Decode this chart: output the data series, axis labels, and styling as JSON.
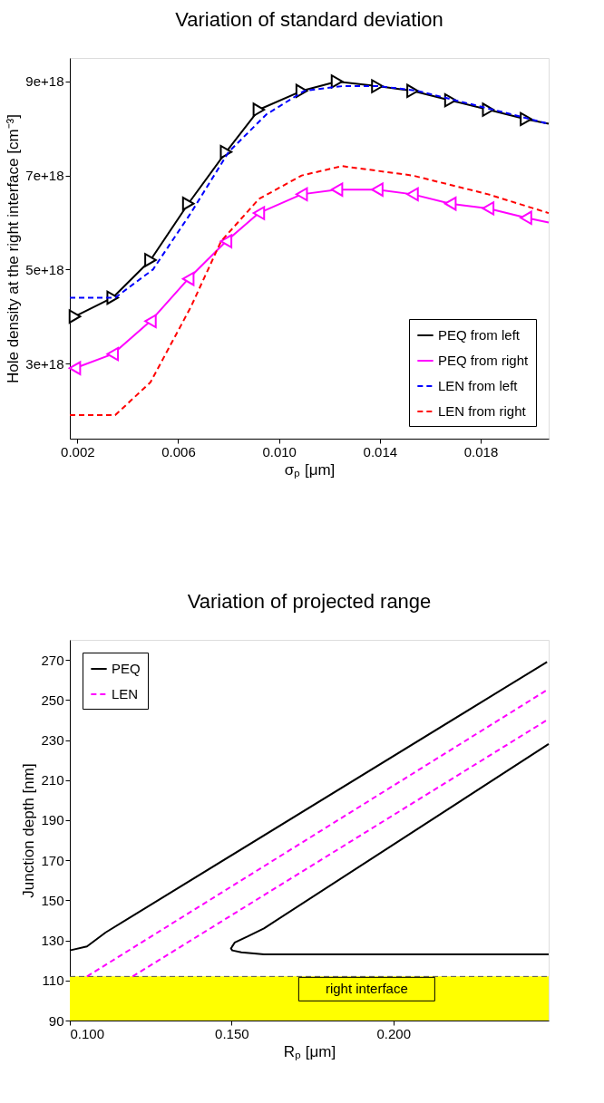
{
  "chart_data": [
    {
      "type": "line",
      "title": "Variation of standard deviation",
      "xlabel": "σₚ  [μm]",
      "ylabel": "Hole density at the right interface [cm⁻³]",
      "xlim": [
        0.0017,
        0.0207
      ],
      "xticks": [
        0.002,
        0.006,
        {
          "value": 0.01,
          "label": "0.010"
        },
        0.014,
        0.018
      ],
      "ylim": [
        1.4e+18,
        9.5e+18
      ],
      "yticks": [
        {
          "value": 3e+18,
          "label": "3e+18"
        },
        {
          "value": 5e+18,
          "label": "5e+18"
        },
        {
          "value": 7e+18,
          "label": "7e+18"
        },
        {
          "value": 9e+18,
          "label": "9e+18"
        }
      ],
      "grid": false,
      "legend": "bottom right",
      "series": [
        {
          "name": "PEQ from left",
          "color": "#000000",
          "marker": "triangle",
          "line_style": "solid",
          "x": [
            0.0019,
            0.0034,
            0.0049,
            0.0064,
            0.0079,
            0.0092,
            0.0109,
            0.0123,
            0.0139,
            0.0153,
            0.0168,
            0.0183,
            0.0198,
            0.0207
          ],
          "values": [
            4e+18,
            4.4e+18,
            5.2e+18,
            6.4e+18,
            7.5e+18,
            8.4e+18,
            8.8e+18,
            9e+18,
            8.9e+18,
            8.8e+18,
            8.6e+18,
            8.4e+18,
            8.2e+18,
            8.1e+18
          ]
        },
        {
          "name": "PEQ from right",
          "color": "#ff00ff",
          "marker": "triangle",
          "line_style": "solid",
          "x": [
            0.0019,
            0.0034,
            0.0049,
            0.0064,
            0.0079,
            0.0092,
            0.0109,
            0.0123,
            0.0139,
            0.0153,
            0.0168,
            0.0183,
            0.0198,
            0.0207
          ],
          "values": [
            2.9e+18,
            3.2e+18,
            3.9e+18,
            4.8e+18,
            5.6e+18,
            6.2e+18,
            6.6e+18,
            6.7e+18,
            6.7e+18,
            6.6e+18,
            6.4e+18,
            6.3e+18,
            6.1e+18,
            6e+18
          ]
        },
        {
          "name": "LEN from left",
          "color": "#0000ff",
          "marker": "none",
          "line_style": "dashed",
          "x": [
            0.0017,
            0.0035,
            0.005,
            0.0065,
            0.008,
            0.0095,
            0.011,
            0.0125,
            0.014,
            0.0155,
            0.017,
            0.0185,
            0.0207
          ],
          "values": [
            4.4e+18,
            4.4e+18,
            5e+18,
            6.2e+18,
            7.5e+18,
            8.3e+18,
            8.8e+18,
            8.9e+18,
            8.9e+18,
            8.8e+18,
            8.6e+18,
            8.4e+18,
            8.1e+18
          ]
        },
        {
          "name": "LEN from right",
          "color": "#ff0000",
          "marker": "none",
          "line_style": "dashed",
          "x": [
            0.0017,
            0.0035,
            0.0049,
            0.0065,
            0.0077,
            0.0092,
            0.0109,
            0.0125,
            0.0139,
            0.0153,
            0.0168,
            0.0183,
            0.0207
          ],
          "values": [
            1.9e+18,
            1.9e+18,
            2.6e+18,
            4.2e+18,
            5.6e+18,
            6.5e+18,
            7e+18,
            7.2e+18,
            7.1e+18,
            7e+18,
            6.8e+18,
            6.6e+18,
            6.2e+18
          ]
        }
      ]
    },
    {
      "type": "line",
      "title": "Variation of projected range",
      "xlabel": "Rₚ  [μm]",
      "ylabel": "Junction depth  [nm]",
      "xlim": [
        0.1,
        0.248
      ],
      "xticks": [
        {
          "value": 0.1,
          "label": "0.100"
        },
        {
          "value": 0.15,
          "label": "0.150"
        },
        {
          "value": 0.2,
          "label": "0.200"
        }
      ],
      "ylim": [
        90,
        280
      ],
      "yticks": [
        90,
        110,
        130,
        150,
        170,
        190,
        210,
        230,
        250,
        270
      ],
      "grid": false,
      "legend": "top left",
      "bands": [
        {
          "axis": "y",
          "from": 90,
          "to": 112,
          "label": "right interface",
          "color": "#ffff00"
        }
      ],
      "ref_lines": [
        {
          "axis": "y",
          "value": 112,
          "color": "#555555",
          "line_style": "dashed"
        }
      ],
      "series": [
        {
          "name": "PEQ",
          "color": "#000000",
          "line_style": "solid",
          "x": [
            0.1,
            0.1053,
            0.1111,
            0.2475
          ],
          "values": [
            125,
            127,
            134,
            269
          ]
        },
        {
          "color": "#000000",
          "line_style": "solid",
          "x": [
            0.248,
            0.16,
            0.153,
            0.1502,
            0.1498,
            0.151,
            0.155,
            0.16,
            0.248
          ],
          "values": [
            123,
            123,
            124,
            125,
            126,
            129,
            132,
            136,
            228
          ]
        },
        {
          "name": "LEN",
          "color": "#ff00ff",
          "line_style": "dashed",
          "x": [
            0.1053,
            0.2475
          ],
          "values": [
            112,
            255
          ]
        },
        {
          "color": "#ff00ff",
          "line_style": "dashed",
          "x": [
            0.1194,
            0.2475
          ],
          "values": [
            112,
            240
          ]
        }
      ]
    }
  ]
}
